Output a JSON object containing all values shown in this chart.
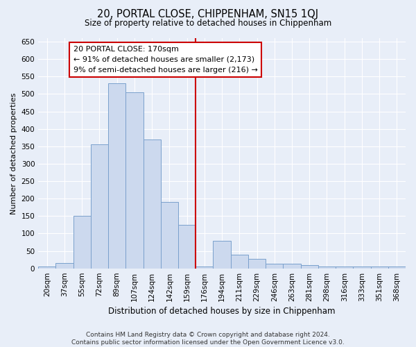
{
  "title": "20, PORTAL CLOSE, CHIPPENHAM, SN15 1QJ",
  "subtitle": "Size of property relative to detached houses in Chippenham",
  "xlabel": "Distribution of detached houses by size in Chippenham",
  "ylabel": "Number of detached properties",
  "bar_color": "#ccd9ee",
  "bar_edge_color": "#7aa0cc",
  "background_color": "#e8eef8",
  "fig_background_color": "#e8eef8",
  "grid_color": "#ffffff",
  "categories": [
    "20sqm",
    "37sqm",
    "55sqm",
    "72sqm",
    "89sqm",
    "107sqm",
    "124sqm",
    "142sqm",
    "159sqm",
    "176sqm",
    "194sqm",
    "211sqm",
    "229sqm",
    "246sqm",
    "263sqm",
    "281sqm",
    "298sqm",
    "316sqm",
    "333sqm",
    "351sqm",
    "368sqm"
  ],
  "values": [
    5,
    15,
    150,
    355,
    530,
    505,
    370,
    190,
    125,
    5,
    78,
    40,
    27,
    13,
    13,
    10,
    5,
    5,
    5,
    5,
    5
  ],
  "vline_x": 9.0,
  "vline_color": "#cc0000",
  "marker_label": "20 PORTAL CLOSE: 170sqm",
  "annotation_line1": "← 91% of detached houses are smaller (2,173)",
  "annotation_line2": "9% of semi-detached houses are larger (216) →",
  "annotation_box_facecolor": "white",
  "annotation_border_color": "#cc0000",
  "footer": "Contains HM Land Registry data © Crown copyright and database right 2024.\nContains public sector information licensed under the Open Government Licence v3.0.",
  "ylim": [
    0,
    660
  ],
  "yticks": [
    0,
    50,
    100,
    150,
    200,
    250,
    300,
    350,
    400,
    450,
    500,
    550,
    600,
    650
  ],
  "title_fontsize": 10.5,
  "subtitle_fontsize": 8.5,
  "ylabel_fontsize": 8,
  "xlabel_fontsize": 8.5,
  "tick_fontsize": 7.5,
  "footer_fontsize": 6.5,
  "ann_fontsize": 8
}
